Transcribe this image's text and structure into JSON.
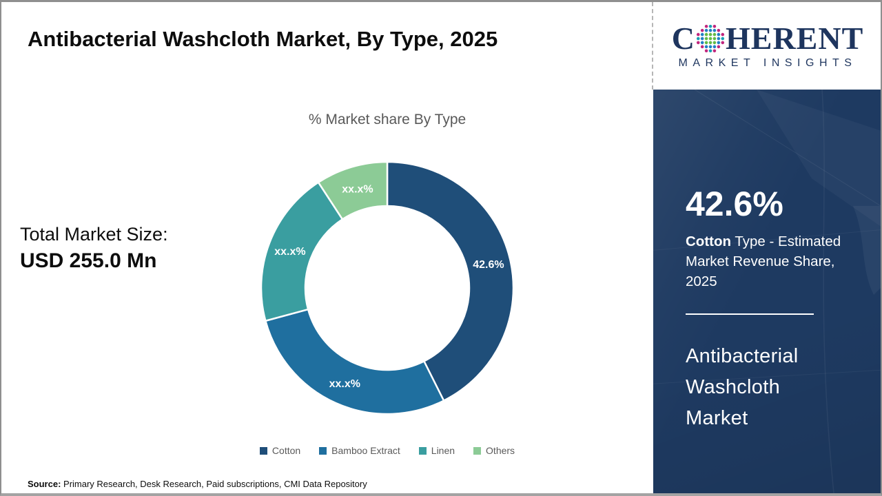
{
  "header": {
    "title": "Antibacterial Washcloth Market, By Type, 2025"
  },
  "logo": {
    "prefix": "C",
    "suffix": "HERENT",
    "subtitle": "MARKET INSIGHTS",
    "text_color": "#1e355e",
    "globe_colors": {
      "green": "#62bb46",
      "blue": "#2180c4",
      "magenta": "#c0267d",
      "teal": "#18a0b5"
    }
  },
  "market_size": {
    "label": "Total Market Size:",
    "value": "USD 255.0 Mn"
  },
  "chart_data": {
    "type": "donut",
    "title": "% Market share By Type",
    "categories": [
      "Cotton",
      "Bamboo Extract",
      "Linen",
      "Others"
    ],
    "values": [
      42.6,
      28.2,
      20.0,
      9.2
    ],
    "display_labels": [
      "42.6%",
      "xx.x%",
      "xx.x%",
      "xx.x%"
    ],
    "colors": [
      "#1f4e79",
      "#1f6f9f",
      "#3a9ea0",
      "#8ccb96"
    ],
    "label_color": "#ffffff",
    "legend_position": "bottom",
    "legend_text_color": "#595959"
  },
  "sidebar": {
    "background": "#1e3a61",
    "stat_value": "42.6%",
    "stat_desc_bold": "Cotton",
    "stat_desc_rest": " Type - Estimated Market Revenue Share, 2025",
    "market_name": "Antibacterial\nWashcloth\nMarket"
  },
  "footer": {
    "source_label": "Source:",
    "source_text": " Primary Research, Desk Research, Paid subscriptions, CMI Data Repository"
  }
}
